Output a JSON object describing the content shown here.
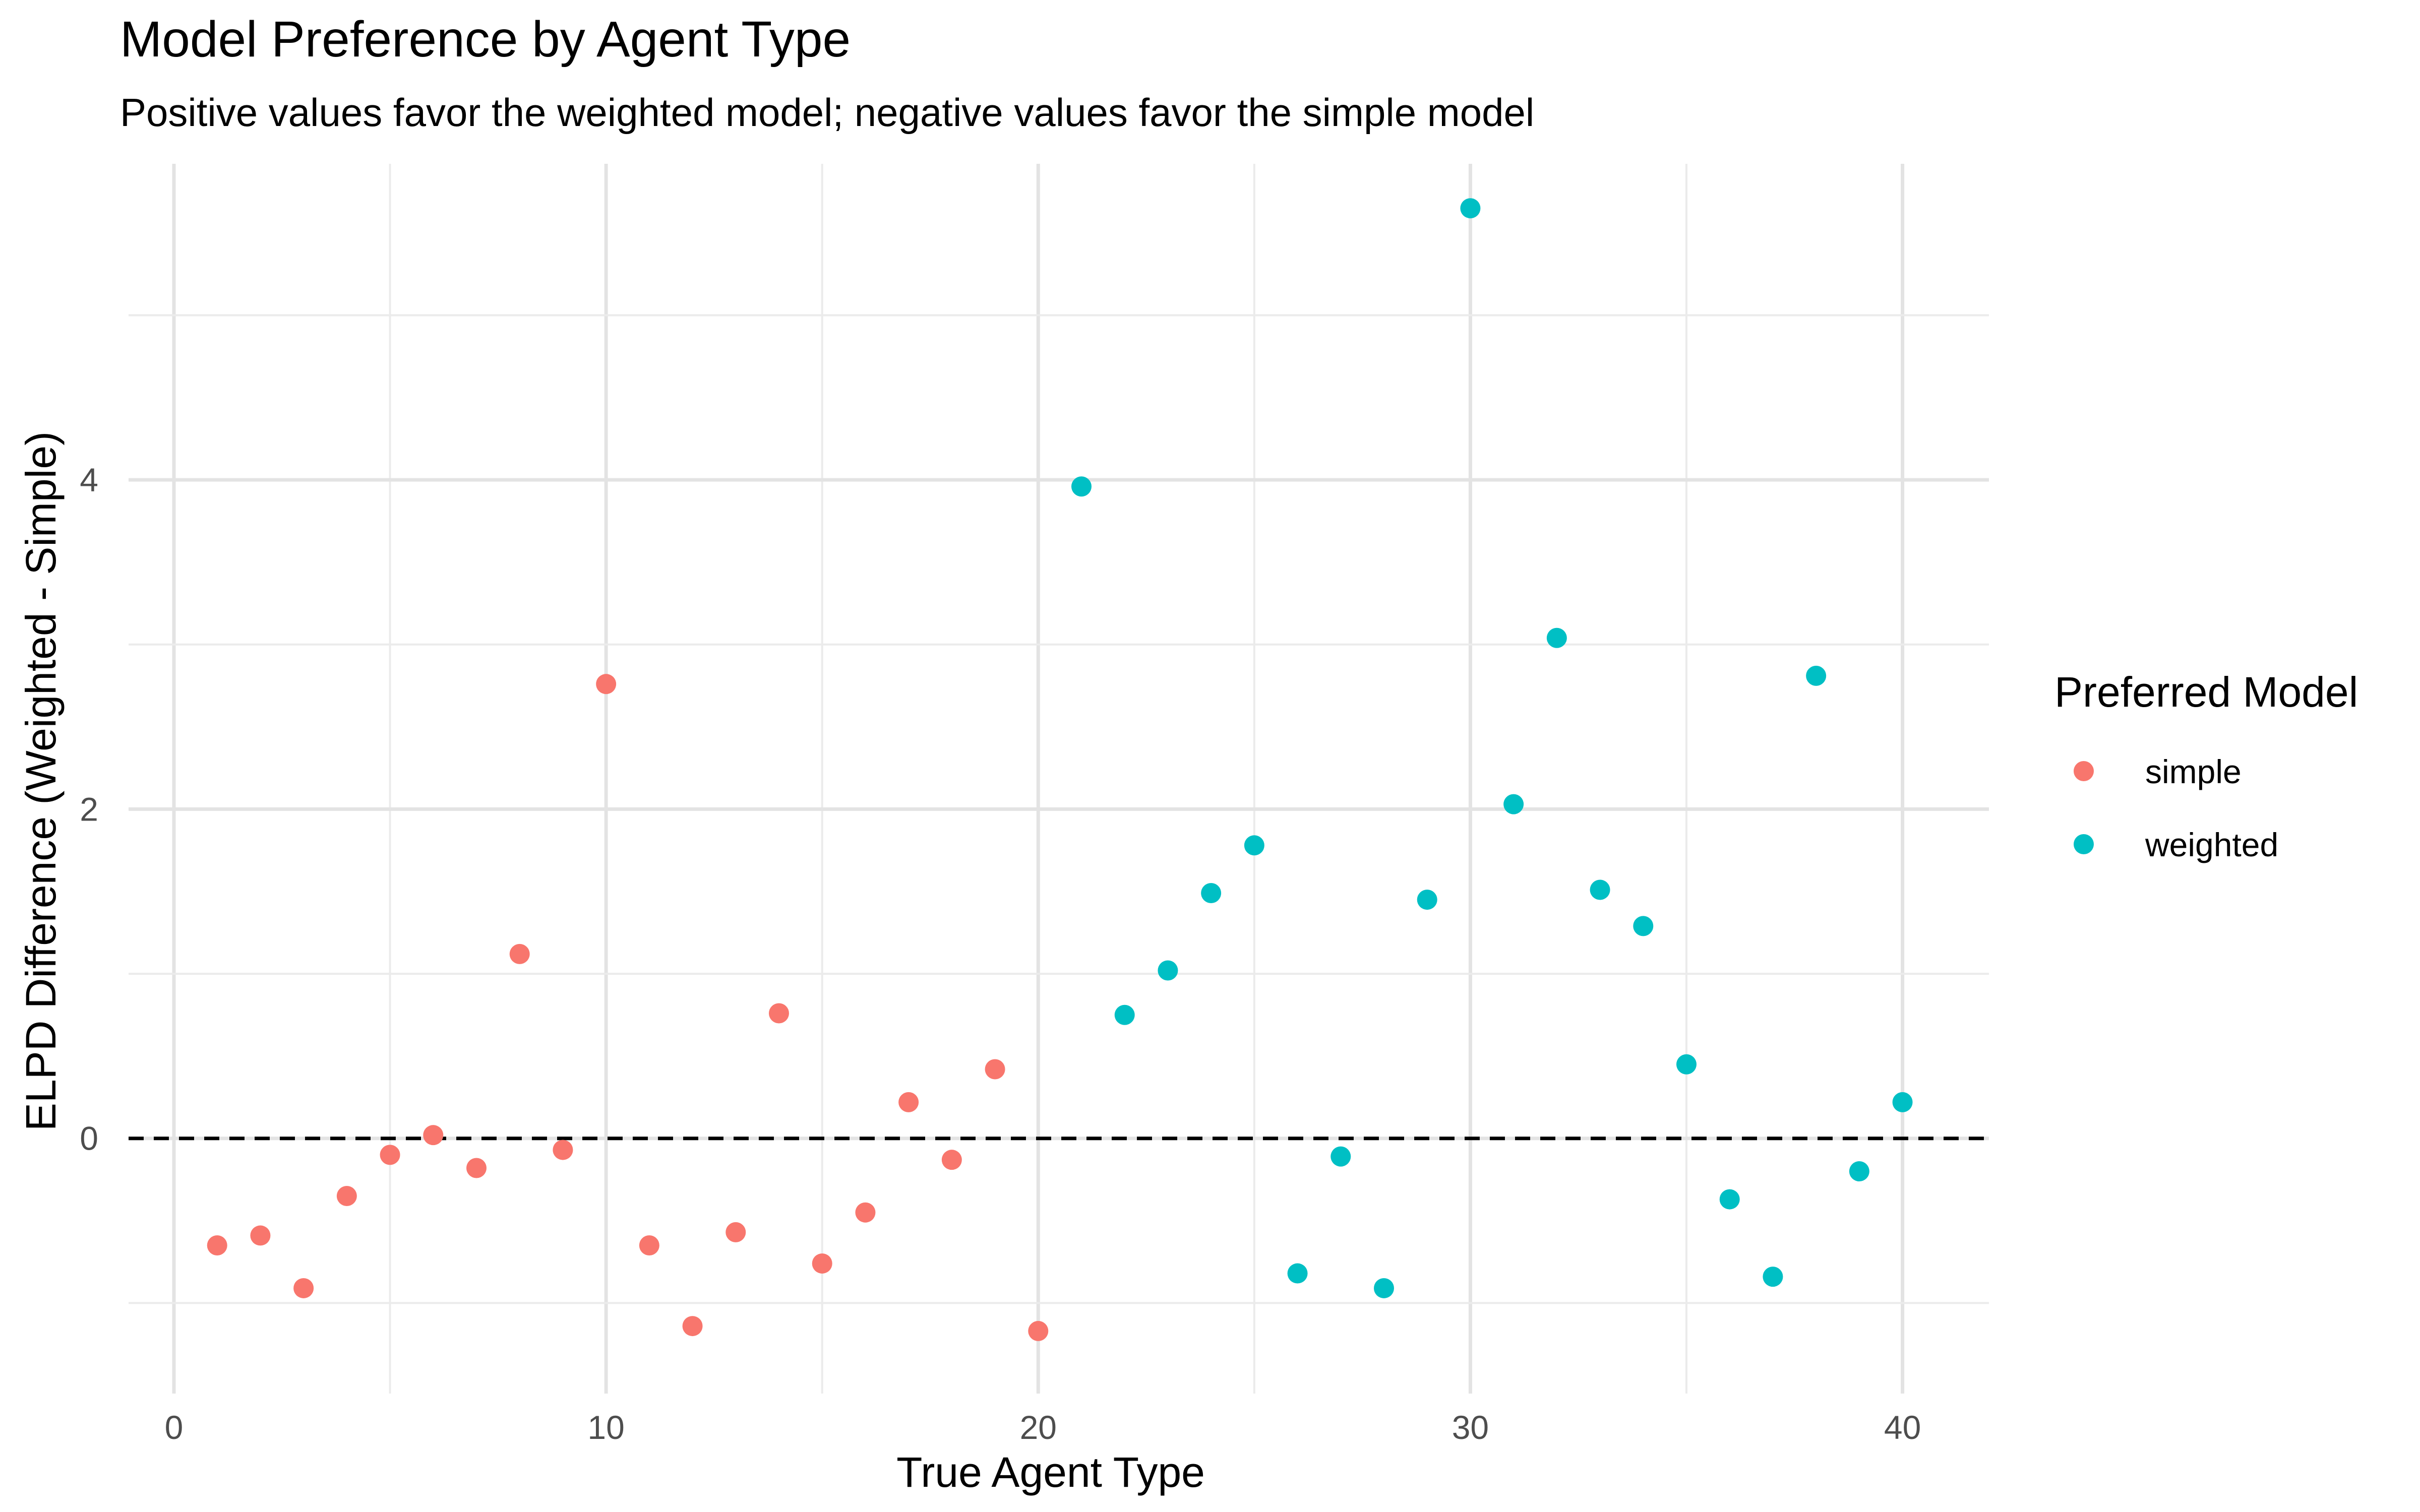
{
  "chart_data": {
    "type": "scatter",
    "title": "Model Preference by Agent Type",
    "subtitle": "Positive values favor the weighted model; negative values favor the simple model",
    "xlabel": "True Agent Type",
    "ylabel": "ELPD Difference (Weighted - Simple)",
    "xlim": [
      -1.05,
      42.0
    ],
    "ylim": [
      -1.55,
      5.92
    ],
    "x_ticks": [
      0,
      10,
      20,
      30,
      40
    ],
    "x_tick_labels": [
      "0",
      "10",
      "20",
      "30",
      "40"
    ],
    "y_ticks": [
      0,
      2,
      4
    ],
    "y_tick_labels": [
      "0",
      "2",
      "4"
    ],
    "grid": true,
    "reference_line": {
      "y": 0,
      "style": "dashed",
      "color": "#000000"
    },
    "legend": {
      "title": "Preferred Model",
      "position": "right",
      "entries": [
        {
          "label": "simple",
          "color": "#F8766D"
        },
        {
          "label": "weighted",
          "color": "#00BFC4"
        }
      ]
    },
    "series": [
      {
        "name": "simple",
        "color": "#F8766D",
        "points": [
          [
            1,
            -0.65
          ],
          [
            2,
            -0.59
          ],
          [
            3,
            -0.91
          ],
          [
            4,
            -0.35
          ],
          [
            5,
            -0.1
          ],
          [
            6,
            0.02
          ],
          [
            7,
            -0.18
          ],
          [
            8,
            1.12
          ],
          [
            9,
            -0.07
          ],
          [
            10,
            2.76
          ],
          [
            11,
            -0.65
          ],
          [
            12,
            -1.14
          ],
          [
            13,
            -0.57
          ],
          [
            14,
            0.76
          ],
          [
            15,
            -0.76
          ],
          [
            16,
            -0.45
          ],
          [
            17,
            0.22
          ],
          [
            18,
            -0.13
          ],
          [
            19,
            0.42
          ],
          [
            20,
            -1.17
          ]
        ]
      },
      {
        "name": "weighted",
        "color": "#00BFC4",
        "points": [
          [
            21,
            3.96
          ],
          [
            22,
            0.75
          ],
          [
            23,
            1.02
          ],
          [
            24,
            1.49
          ],
          [
            25,
            1.78
          ],
          [
            26,
            -0.82
          ],
          [
            27,
            -0.11
          ],
          [
            28,
            -0.91
          ],
          [
            29,
            1.45
          ],
          [
            30,
            5.65
          ],
          [
            31,
            2.03
          ],
          [
            32,
            3.04
          ],
          [
            33,
            1.51
          ],
          [
            34,
            1.29
          ],
          [
            35,
            0.45
          ],
          [
            36,
            -0.37
          ],
          [
            37,
            -0.84
          ],
          [
            38,
            2.81
          ],
          [
            39,
            -0.2
          ],
          [
            40,
            0.22
          ]
        ]
      }
    ]
  }
}
